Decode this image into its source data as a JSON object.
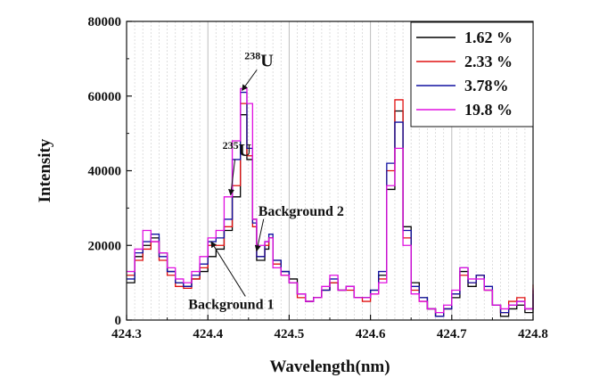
{
  "chart_data": {
    "type": "line",
    "title": "",
    "xlabel": "Wavelength(nm)",
    "ylabel": "Intensity",
    "xlim": [
      424.3,
      424.8
    ],
    "ylim": [
      0,
      80000
    ],
    "x_ticks": [
      "424.3",
      "424.4",
      "424.5",
      "424.6",
      "424.7",
      "424.8"
    ],
    "y_ticks": [
      "0",
      "20000",
      "40000",
      "60000",
      "80000"
    ],
    "grid": "vertical dotted",
    "legend_position": "top-right",
    "colors": {
      "s1": "#000000",
      "s2": "#e01010",
      "s3": "#1010a0",
      "s4": "#e010e0"
    },
    "series": [
      {
        "name": "1.62 %",
        "color": "#000000",
        "points": [
          [
            424.3,
            10000
          ],
          [
            424.31,
            17000
          ],
          [
            424.32,
            20000
          ],
          [
            424.33,
            22000
          ],
          [
            424.34,
            18000
          ],
          [
            424.35,
            13000
          ],
          [
            424.36,
            10000
          ],
          [
            424.37,
            9000
          ],
          [
            424.38,
            11000
          ],
          [
            424.39,
            13000
          ],
          [
            424.4,
            17000
          ],
          [
            424.41,
            19000
          ],
          [
            424.42,
            24000
          ],
          [
            424.43,
            33000
          ],
          [
            424.44,
            55000
          ],
          [
            424.448,
            43000
          ],
          [
            424.455,
            27000
          ],
          [
            424.46,
            16000
          ],
          [
            424.47,
            19000
          ],
          [
            424.475,
            22000
          ],
          [
            424.48,
            16000
          ],
          [
            424.49,
            13000
          ],
          [
            424.5,
            11000
          ],
          [
            424.51,
            7000
          ],
          [
            424.52,
            5000
          ],
          [
            424.53,
            6000
          ],
          [
            424.54,
            8000
          ],
          [
            424.55,
            10000
          ],
          [
            424.56,
            8000
          ],
          [
            424.57,
            9000
          ],
          [
            424.58,
            6000
          ],
          [
            424.59,
            6000
          ],
          [
            424.6,
            8000
          ],
          [
            424.61,
            12000
          ],
          [
            424.62,
            35000
          ],
          [
            424.63,
            56000
          ],
          [
            424.64,
            25000
          ],
          [
            424.65,
            10000
          ],
          [
            424.66,
            6000
          ],
          [
            424.67,
            3000
          ],
          [
            424.68,
            1000
          ],
          [
            424.69,
            3000
          ],
          [
            424.7,
            6000
          ],
          [
            424.71,
            13000
          ],
          [
            424.72,
            9000
          ],
          [
            424.73,
            12000
          ],
          [
            424.74,
            8000
          ],
          [
            424.75,
            4000
          ],
          [
            424.76,
            1000
          ],
          [
            424.77,
            3000
          ],
          [
            424.78,
            4000
          ],
          [
            424.79,
            2000
          ],
          [
            424.8,
            8000
          ]
        ]
      },
      {
        "name": "2.33 %",
        "color": "#e01010",
        "points": [
          [
            424.3,
            12000
          ],
          [
            424.31,
            16000
          ],
          [
            424.32,
            19000
          ],
          [
            424.33,
            21000
          ],
          [
            424.34,
            16000
          ],
          [
            424.35,
            12000
          ],
          [
            424.36,
            9000
          ],
          [
            424.37,
            8500
          ],
          [
            424.38,
            11000
          ],
          [
            424.39,
            14000
          ],
          [
            424.4,
            20000
          ],
          [
            424.41,
            20000
          ],
          [
            424.42,
            25000
          ],
          [
            424.43,
            36000
          ],
          [
            424.44,
            58000
          ],
          [
            424.448,
            44000
          ],
          [
            424.455,
            25000
          ],
          [
            424.46,
            17000
          ],
          [
            424.47,
            20000
          ],
          [
            424.475,
            22000
          ],
          [
            424.48,
            15000
          ],
          [
            424.49,
            12000
          ],
          [
            424.5,
            10000
          ],
          [
            424.51,
            6000
          ],
          [
            424.52,
            5000
          ],
          [
            424.53,
            6000
          ],
          [
            424.54,
            8000
          ],
          [
            424.55,
            10000
          ],
          [
            424.56,
            8000
          ],
          [
            424.57,
            8000
          ],
          [
            424.58,
            6000
          ],
          [
            424.59,
            5000
          ],
          [
            424.6,
            7000
          ],
          [
            424.61,
            11000
          ],
          [
            424.62,
            40000
          ],
          [
            424.63,
            59000
          ],
          [
            424.64,
            22000
          ],
          [
            424.65,
            8000
          ],
          [
            424.66,
            5000
          ],
          [
            424.67,
            3000
          ],
          [
            424.68,
            1000
          ],
          [
            424.69,
            3000
          ],
          [
            424.7,
            7000
          ],
          [
            424.71,
            12000
          ],
          [
            424.72,
            10000
          ],
          [
            424.73,
            12000
          ],
          [
            424.74,
            8000
          ],
          [
            424.75,
            4000
          ],
          [
            424.76,
            2000
          ],
          [
            424.77,
            5000
          ],
          [
            424.78,
            6000
          ],
          [
            424.79,
            3000
          ],
          [
            424.8,
            9500
          ]
        ]
      },
      {
        "name": "3.78%",
        "color": "#1010a0",
        "points": [
          [
            424.3,
            11000
          ],
          [
            424.31,
            18000
          ],
          [
            424.32,
            21000
          ],
          [
            424.33,
            23000
          ],
          [
            424.34,
            17000
          ],
          [
            424.35,
            13000
          ],
          [
            424.36,
            10000
          ],
          [
            424.37,
            9000
          ],
          [
            424.38,
            12000
          ],
          [
            424.39,
            15000
          ],
          [
            424.4,
            21000
          ],
          [
            424.41,
            22000
          ],
          [
            424.42,
            27000
          ],
          [
            424.43,
            43000
          ],
          [
            424.44,
            61000
          ],
          [
            424.448,
            46000
          ],
          [
            424.455,
            26000
          ],
          [
            424.46,
            17000
          ],
          [
            424.47,
            21000
          ],
          [
            424.475,
            23000
          ],
          [
            424.48,
            16000
          ],
          [
            424.49,
            13000
          ],
          [
            424.5,
            10000
          ],
          [
            424.51,
            7000
          ],
          [
            424.52,
            5000
          ],
          [
            424.53,
            6000
          ],
          [
            424.54,
            8000
          ],
          [
            424.55,
            11000
          ],
          [
            424.56,
            8000
          ],
          [
            424.57,
            9000
          ],
          [
            424.58,
            6000
          ],
          [
            424.59,
            6000
          ],
          [
            424.6,
            8000
          ],
          [
            424.61,
            13000
          ],
          [
            424.62,
            42000
          ],
          [
            424.63,
            53000
          ],
          [
            424.64,
            24000
          ],
          [
            424.65,
            9000
          ],
          [
            424.66,
            6000
          ],
          [
            424.67,
            3000
          ],
          [
            424.68,
            1000
          ],
          [
            424.69,
            3000
          ],
          [
            424.7,
            7000
          ],
          [
            424.71,
            14000
          ],
          [
            424.72,
            10000
          ],
          [
            424.73,
            12000
          ],
          [
            424.74,
            9000
          ],
          [
            424.75,
            4000
          ],
          [
            424.76,
            2000
          ],
          [
            424.77,
            4000
          ],
          [
            424.78,
            5000
          ],
          [
            424.79,
            3000
          ],
          [
            424.8,
            7000
          ]
        ]
      },
      {
        "name": "19.8 %",
        "color": "#e010e0",
        "points": [
          [
            424.3,
            13000
          ],
          [
            424.31,
            19000
          ],
          [
            424.32,
            24000
          ],
          [
            424.33,
            21000
          ],
          [
            424.34,
            18000
          ],
          [
            424.35,
            14000
          ],
          [
            424.36,
            11000
          ],
          [
            424.37,
            10000
          ],
          [
            424.38,
            13000
          ],
          [
            424.39,
            17000
          ],
          [
            424.4,
            22000
          ],
          [
            424.41,
            24000
          ],
          [
            424.42,
            33000
          ],
          [
            424.43,
            48000
          ],
          [
            424.44,
            62000
          ],
          [
            424.448,
            58000
          ],
          [
            424.455,
            27000
          ],
          [
            424.46,
            20000
          ],
          [
            424.47,
            21000
          ],
          [
            424.475,
            22000
          ],
          [
            424.48,
            14000
          ],
          [
            424.49,
            12000
          ],
          [
            424.5,
            10000
          ],
          [
            424.51,
            7000
          ],
          [
            424.52,
            5000
          ],
          [
            424.53,
            6000
          ],
          [
            424.54,
            9000
          ],
          [
            424.55,
            12000
          ],
          [
            424.56,
            8000
          ],
          [
            424.57,
            9000
          ],
          [
            424.58,
            6000
          ],
          [
            424.59,
            6000
          ],
          [
            424.6,
            7000
          ],
          [
            424.61,
            10000
          ],
          [
            424.62,
            36000
          ],
          [
            424.63,
            46000
          ],
          [
            424.64,
            20000
          ],
          [
            424.65,
            7000
          ],
          [
            424.66,
            5000
          ],
          [
            424.67,
            3000
          ],
          [
            424.68,
            2000
          ],
          [
            424.69,
            4000
          ],
          [
            424.7,
            8000
          ],
          [
            424.71,
            14000
          ],
          [
            424.72,
            11000
          ],
          [
            424.73,
            11000
          ],
          [
            424.74,
            8000
          ],
          [
            424.75,
            4000
          ],
          [
            424.76,
            3000
          ],
          [
            424.77,
            4000
          ],
          [
            424.78,
            5000
          ],
          [
            424.79,
            3000
          ],
          [
            424.8,
            8500
          ]
        ]
      }
    ],
    "annotations": [
      {
        "text_sup": "238",
        "text": "U",
        "label_at": [
          424.445,
          68000
        ],
        "arrow_to": [
          424.442,
          61500
        ]
      },
      {
        "text_sup": "235",
        "text": "U",
        "label_at": [
          424.418,
          44000
        ],
        "arrow_to": [
          424.428,
          33500
        ]
      },
      {
        "text": "Background 2",
        "label_at": [
          424.462,
          28000
        ],
        "arrow_to": [
          424.46,
          18500
        ]
      },
      {
        "text": "Background 1",
        "label_at": [
          424.376,
          3000
        ],
        "arrow_to": [
          424.404,
          21000
        ]
      }
    ]
  }
}
